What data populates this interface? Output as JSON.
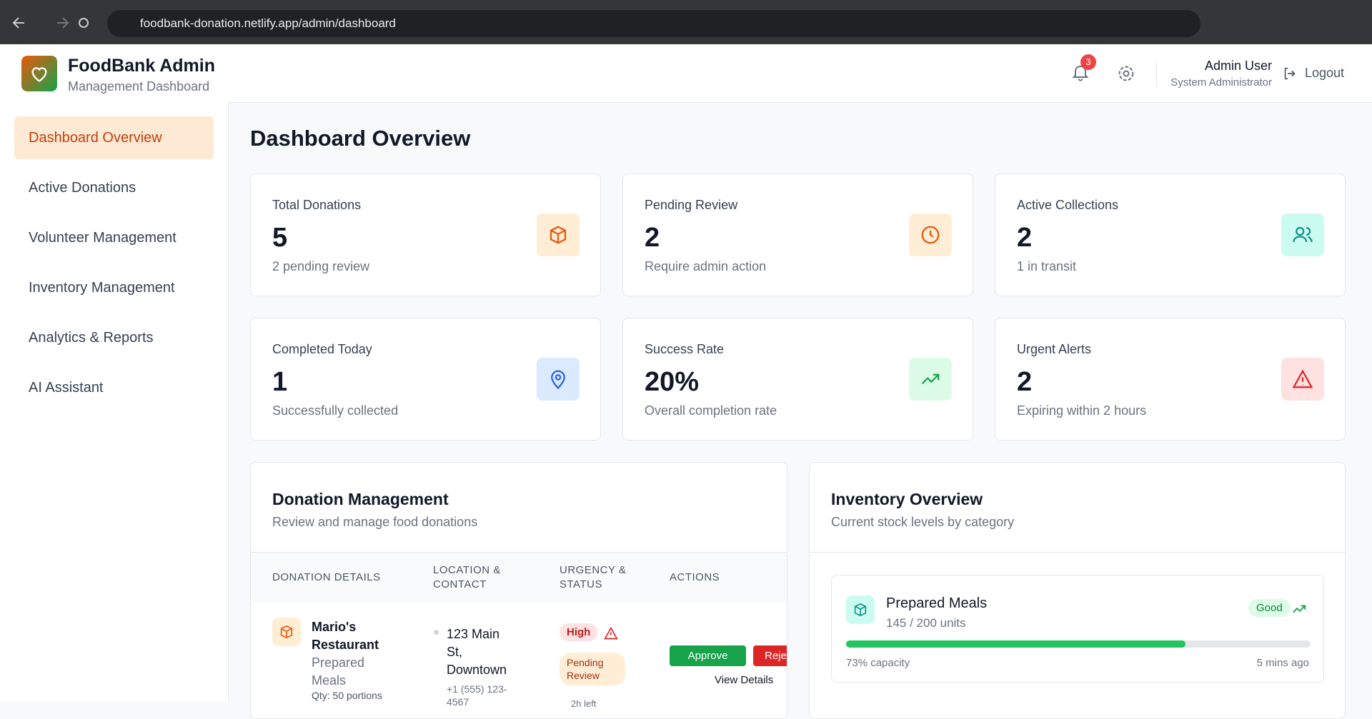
{
  "browser": {
    "url": "foodbank-donation.netlify.app/admin/dashboard"
  },
  "header": {
    "title": "FoodBank Admin",
    "subtitle": "Management Dashboard",
    "notifications": "3",
    "user_name": "Admin User",
    "user_role": "System Administrator",
    "logout": "Logout"
  },
  "sidebar": {
    "items": [
      "Dashboard Overview",
      "Active Donations",
      "Volunteer Management",
      "Inventory Management",
      "Analytics & Reports",
      "AI Assistant"
    ]
  },
  "main": {
    "title": "Dashboard Overview",
    "stats": [
      {
        "label": "Total Donations",
        "value": "5",
        "note": "2 pending review"
      },
      {
        "label": "Pending Review",
        "value": "2",
        "note": "Require admin action"
      },
      {
        "label": "Active Collections",
        "value": "2",
        "note": "1 in transit"
      },
      {
        "label": "Completed Today",
        "value": "1",
        "note": "Successfully collected"
      },
      {
        "label": "Success Rate",
        "value": "20%",
        "note": "Overall completion rate"
      },
      {
        "label": "Urgent Alerts",
        "value": "2",
        "note": "Expiring within 2 hours"
      }
    ]
  },
  "donations": {
    "title": "Donation Management",
    "subtitle": "Review and manage food donations",
    "columns": [
      "Donation Details",
      "Location & Contact",
      "Urgency & Status",
      "Actions"
    ],
    "rows": [
      {
        "name": "Mario's Restaurant",
        "item": "Prepared Meals",
        "qty": "Qty: 50 portions",
        "address": "123 Main St, Downtown",
        "phone": "+1 (555) 123-4567",
        "urgency": "High",
        "status": "Pending Review",
        "time": "2h left",
        "approve": "Approve",
        "reject": "Reject",
        "view": "View Details"
      }
    ]
  },
  "inventory": {
    "title": "Inventory Overview",
    "subtitle": "Current stock levels by category",
    "items": [
      {
        "name": "Prepared Meals",
        "units": "145 / 200 units",
        "status": "Good",
        "capacity": 73,
        "capacity_label": "73% capacity",
        "updated": "5 mins ago"
      }
    ]
  }
}
